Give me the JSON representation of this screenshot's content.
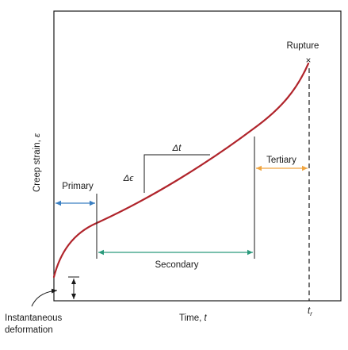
{
  "labels": {
    "y_axis_text": "Creep strain, ",
    "y_axis_symbol": "ε",
    "x_axis_text": "Time, ",
    "x_axis_symbol": "t",
    "rupture": "Rupture",
    "rupture_marker": "×",
    "primary": "Primary",
    "secondary": "Secondary",
    "tertiary": "Tertiary",
    "delta_t": "Δt",
    "delta_epsilon": "Δϵ",
    "instantaneous_line1": "Instantaneous",
    "instantaneous_line2": "deformation",
    "tr_main": "t",
    "tr_sub": "r"
  },
  "colors": {
    "curve": "#b0242b",
    "primary": "#3a7fc2",
    "secondary": "#2a9a7c",
    "tertiary": "#f0a540",
    "frame": "#1a1a1a"
  }
}
